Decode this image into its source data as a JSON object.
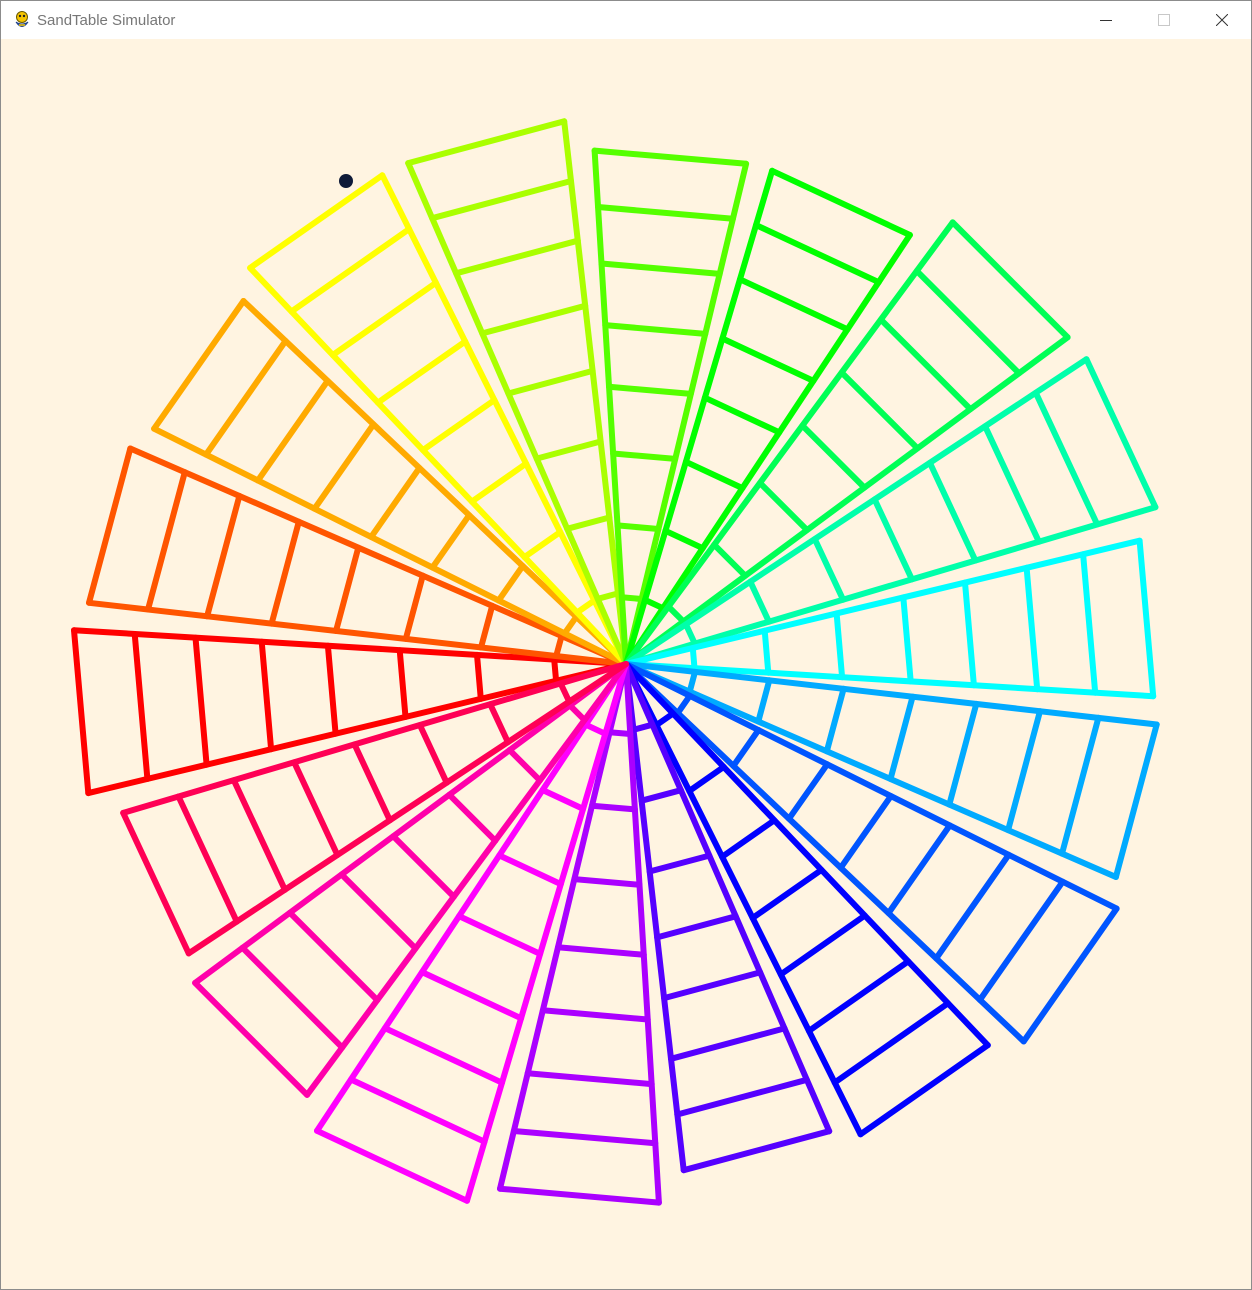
{
  "window": {
    "title": "SandTable Simulator",
    "app_icon": "python-snake-icon",
    "controls": [
      "minimize-icon",
      "maximize-icon",
      "close-icon"
    ]
  },
  "canvas": {
    "background": "#fff4e1",
    "pattern": {
      "arms": 18,
      "rungs_per_arm": 8,
      "palette": "rainbow",
      "start_color": "#ff0000"
    },
    "ball_color": "#0e1a38"
  }
}
